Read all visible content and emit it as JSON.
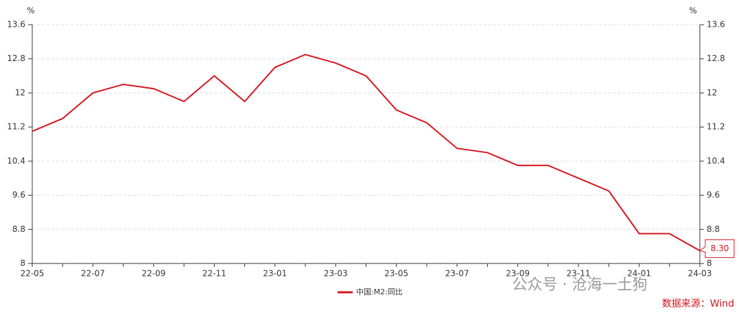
{
  "chart_data": {
    "type": "line",
    "y_label": "%",
    "y2_label": "%",
    "categories": [
      "22-05",
      null,
      "22-07",
      null,
      "22-09",
      null,
      "22-11",
      null,
      "23-01",
      null,
      "23-03",
      null,
      "23-05",
      null,
      "23-07",
      null,
      "23-09",
      null,
      "23-11",
      null,
      "24-01",
      null,
      "24-03"
    ],
    "series": [
      {
        "name": "中国:M2:同比",
        "color": "#d7141f",
        "values": [
          11.1,
          11.4,
          12.0,
          12.2,
          12.1,
          11.8,
          12.4,
          11.8,
          12.6,
          12.9,
          12.7,
          12.4,
          11.6,
          11.3,
          10.7,
          10.6,
          10.3,
          10.3,
          10.0,
          9.7,
          8.7,
          8.7,
          8.3
        ],
        "last_value_label": "8.30"
      }
    ],
    "ylim": [
      8,
      13.6
    ],
    "yticks": [
      8,
      8.8,
      9.6,
      10.4,
      11.2,
      12,
      12.8,
      13.6
    ],
    "y2lim": [
      8,
      13.6
    ],
    "y2ticks": [
      8,
      8.8,
      9.6,
      10.4,
      11.2,
      12,
      12.8,
      13.6
    ],
    "grid": true,
    "watermark": "公众号 · 沧海一土狗",
    "source": "数据来源：Wind"
  }
}
